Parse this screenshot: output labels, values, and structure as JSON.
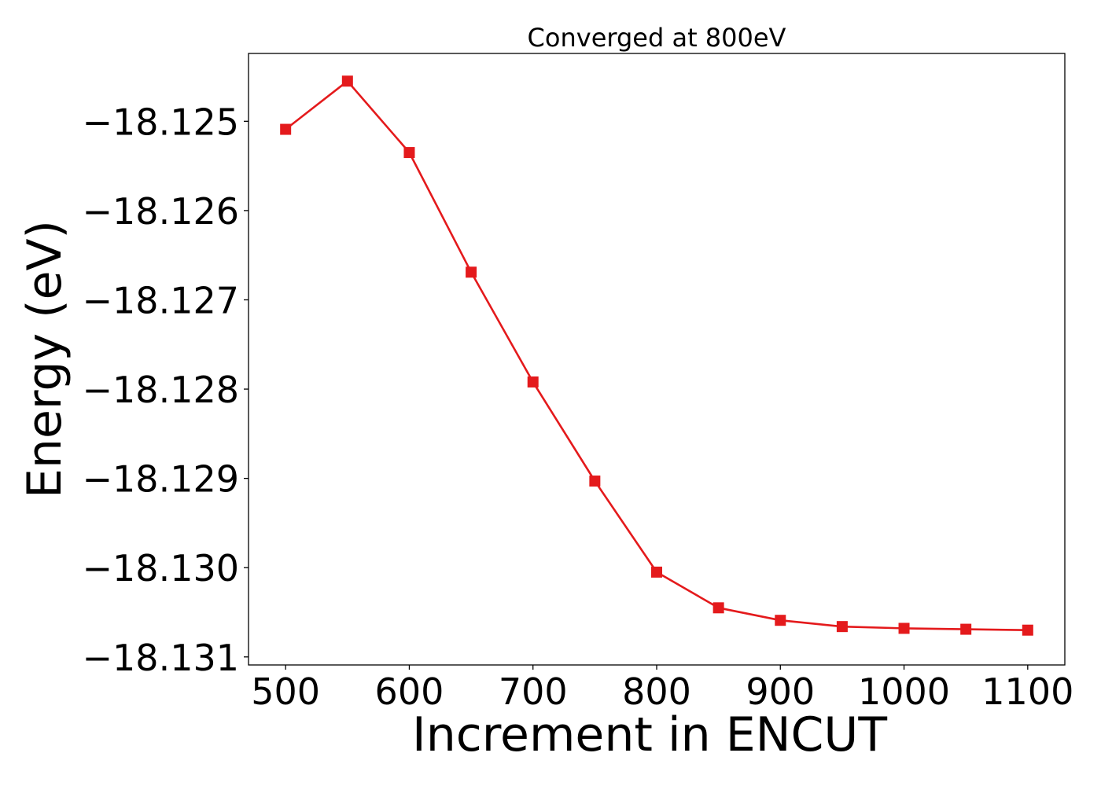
{
  "chart_data": {
    "type": "line",
    "title": "Converged at 800eV",
    "xlabel": "Increment in ENCUT",
    "ylabel": "Energy (eV)",
    "x": [
      500,
      550,
      600,
      650,
      700,
      750,
      800,
      850,
      900,
      950,
      1000,
      1050,
      1100
    ],
    "series": [
      {
        "values": [
          -18.12509,
          -18.12455,
          -18.12535,
          -18.12669,
          -18.12792,
          -18.12903,
          -18.13005,
          -18.13045,
          -18.13059,
          -18.13066,
          -18.13068,
          -18.13069,
          -18.1307
        ],
        "color": "#e41a1c",
        "marker": "square"
      }
    ],
    "xticks": [
      500,
      600,
      700,
      800,
      900,
      1000,
      1100
    ],
    "xtick_labels": [
      "500",
      "600",
      "700",
      "800",
      "900",
      "1000",
      "1100"
    ],
    "yticks": [
      -18.125,
      -18.126,
      -18.127,
      -18.128,
      -18.129,
      -18.13,
      -18.131
    ],
    "ytick_labels": [
      "−18.125",
      "−18.126",
      "−18.127",
      "−18.128",
      "−18.129",
      "−18.130",
      "−18.131"
    ],
    "xlim": [
      470,
      1130
    ],
    "ylim": [
      -18.13109,
      -18.12424
    ],
    "grid": false,
    "legend": "none"
  }
}
